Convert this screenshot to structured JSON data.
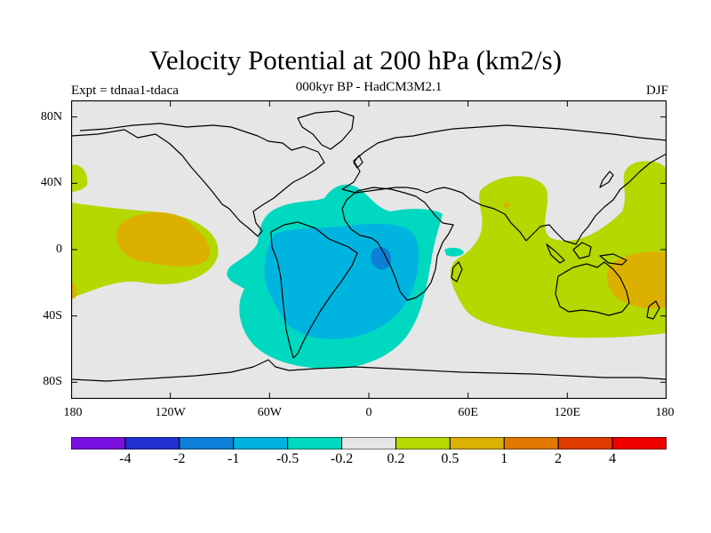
{
  "header": {
    "title": "Velocity Potential at 200 hPa (km2/s)",
    "subtitle": "000kyr BP - HadCM3M2.1",
    "left_label": "Expt = tdnaa1-tdaca",
    "right_label": "DJF"
  },
  "map": {
    "projection": "cylindrical-equidistant",
    "lon_range": [
      -180,
      180
    ],
    "lat_range": [
      -90,
      90
    ],
    "y_ticks": [
      {
        "label": "80N",
        "lat": 80
      },
      {
        "label": "40N",
        "lat": 40
      },
      {
        "label": "0",
        "lat": 0
      },
      {
        "label": "40S",
        "lat": -40
      },
      {
        "label": "80S",
        "lat": -80
      }
    ],
    "x_ticks": [
      {
        "label": "180",
        "lon": -180
      },
      {
        "label": "120W",
        "lon": -120
      },
      {
        "label": "60W",
        "lon": -60
      },
      {
        "label": "0",
        "lon": 0
      },
      {
        "label": "60E",
        "lon": 60
      },
      {
        "label": "120E",
        "lon": 120
      },
      {
        "label": "180",
        "lon": 180
      }
    ],
    "background_color": "#e6e6e6"
  },
  "legend": {
    "colors": [
      "#7a10e0",
      "#2030d0",
      "#0c80d8",
      "#00b4e0",
      "#00d8c0",
      "#e6e6e6",
      "#b4d800",
      "#dcb000",
      "#e07800",
      "#e03c00",
      "#f00000"
    ],
    "labels": [
      "-4",
      "-2",
      "-1",
      "-0.5",
      "-0.2",
      "0.2",
      "0.5",
      "1",
      "2",
      "4"
    ]
  }
}
